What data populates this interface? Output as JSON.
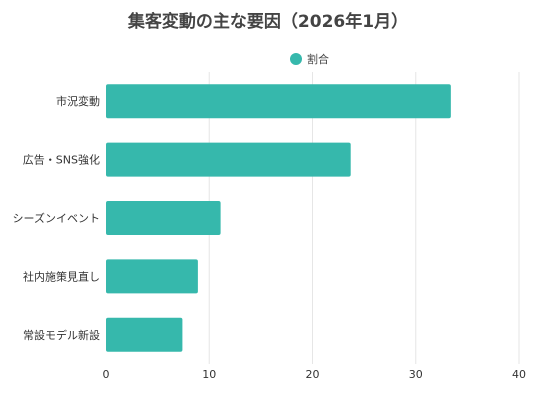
{
  "chart_data": {
    "type": "bar",
    "orientation": "horizontal",
    "title": "集客変動の主な要因（2026年1月）",
    "categories": [
      "市況変動",
      "広告・SNS強化",
      "シーズンイベント",
      "社内施策見直し",
      "常設モデル新設"
    ],
    "series": [
      {
        "name": "割合",
        "values": [
          33.4,
          23.7,
          11.1,
          8.9,
          7.4
        ],
        "color": "#36b8ac"
      }
    ],
    "xlim": [
      0,
      40
    ],
    "xticks": [
      0,
      10,
      20,
      30,
      40
    ],
    "xlabel": "",
    "ylabel": "",
    "grid": "vertical",
    "legend_position": "top-center"
  }
}
